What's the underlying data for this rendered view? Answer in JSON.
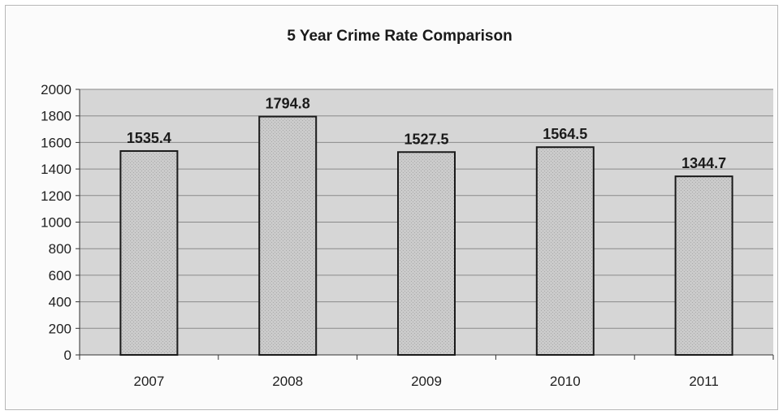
{
  "chart_data": {
    "type": "bar",
    "title": "5 Year Crime Rate Comparison",
    "xlabel": "",
    "ylabel": "",
    "categories": [
      "2007",
      "2008",
      "2009",
      "2010",
      "2011"
    ],
    "values": [
      1535.4,
      1794.8,
      1527.5,
      1564.5,
      1344.7
    ],
    "data_labels": [
      "1535.4",
      "1794.8",
      "1527.5",
      "1564.5",
      "1344.7"
    ],
    "ylim": [
      0,
      2000
    ],
    "yticks": [
      "0",
      "200",
      "400",
      "600",
      "800",
      "1000",
      "1200",
      "1400",
      "1600",
      "1800",
      "2000"
    ],
    "grid": true,
    "legend": "none",
    "colors": {
      "bar_fill": "#c9c9c9",
      "bar_stroke": "#1a1a1a",
      "plot_bg": "#d6d6d6",
      "gridline": "#8a8a8a"
    }
  }
}
